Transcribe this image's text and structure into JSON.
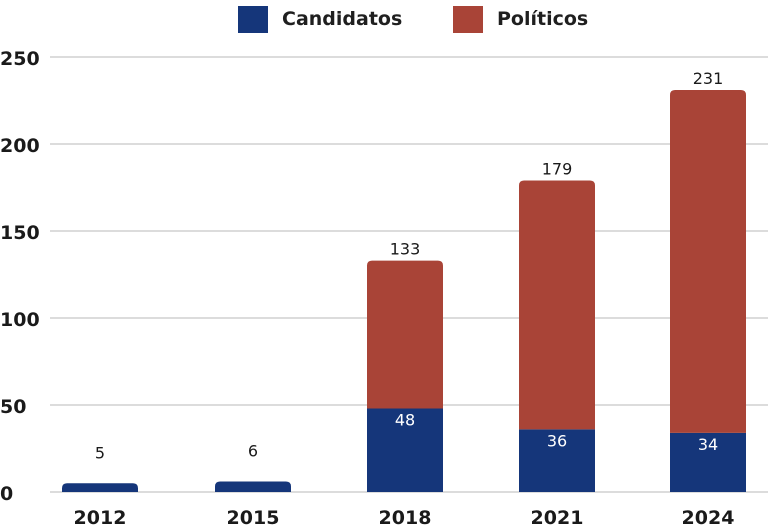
{
  "chart_data": {
    "type": "bar",
    "stacked": true,
    "categories": [
      "2012",
      "2015",
      "2018",
      "2021",
      "2024"
    ],
    "series": [
      {
        "name": "Candidatos",
        "color": "#15367a",
        "values": [
          5,
          6,
          48,
          36,
          34
        ]
      },
      {
        "name": "Políticos",
        "color": "#a94437",
        "values": [
          0,
          0,
          85,
          143,
          197
        ]
      }
    ],
    "totals": [
      null,
      null,
      133,
      179,
      231
    ],
    "title": "",
    "xlabel": "",
    "ylabel": "",
    "ylim": [
      0,
      250
    ],
    "yticks": [
      0,
      50,
      100,
      150,
      200,
      250
    ],
    "grid": true,
    "legend_position": "top-center"
  }
}
